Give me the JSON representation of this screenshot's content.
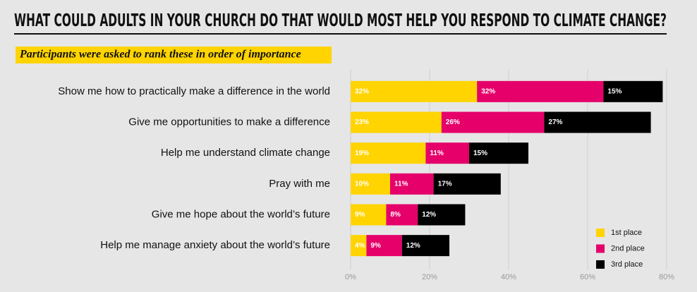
{
  "chart_data": {
    "type": "stacked-barh",
    "title": "WHAT COULD ADULTS IN YOUR CHURCH DO THAT WOULD MOST HELP YOU RESPOND TO CLIMATE CHANGE?",
    "subtitle": "Participants were asked to rank these in order of importance",
    "categories": [
      "Show me how to practically make a difference in the world",
      "Give me opportunities to make a difference",
      "Help me understand climate change",
      "Pray with me",
      "Give me hope about the world’s future",
      "Help me manage anxiety about the world’s future"
    ],
    "series": [
      {
        "name": "1st place",
        "color": "#ffd400",
        "values": [
          32,
          23,
          19,
          10,
          9,
          4
        ],
        "value_labels": [
          "32%",
          "23%",
          "19%",
          "10%",
          "9%",
          "4%"
        ]
      },
      {
        "name": "2nd place",
        "color": "#e5006a",
        "values": [
          32,
          26,
          11,
          11,
          8,
          9
        ],
        "value_labels": [
          "32%",
          "26%",
          "11%",
          "11%",
          "8%",
          "9%"
        ]
      },
      {
        "name": "3rd place",
        "color": "#000000",
        "values": [
          15,
          27,
          15,
          17,
          12,
          12
        ],
        "value_labels": [
          "15%",
          "27%",
          "15%",
          "17%",
          "12%",
          "12%"
        ]
      }
    ],
    "xlim": [
      0,
      80
    ],
    "xticks": [
      {
        "value": 0,
        "label": "0%"
      },
      {
        "value": 20,
        "label": "20%"
      },
      {
        "value": 40,
        "label": "40%"
      },
      {
        "value": 60,
        "label": "60%"
      },
      {
        "value": 80,
        "label": "80%"
      }
    ],
    "grid": true,
    "legend": "bottom-right"
  }
}
